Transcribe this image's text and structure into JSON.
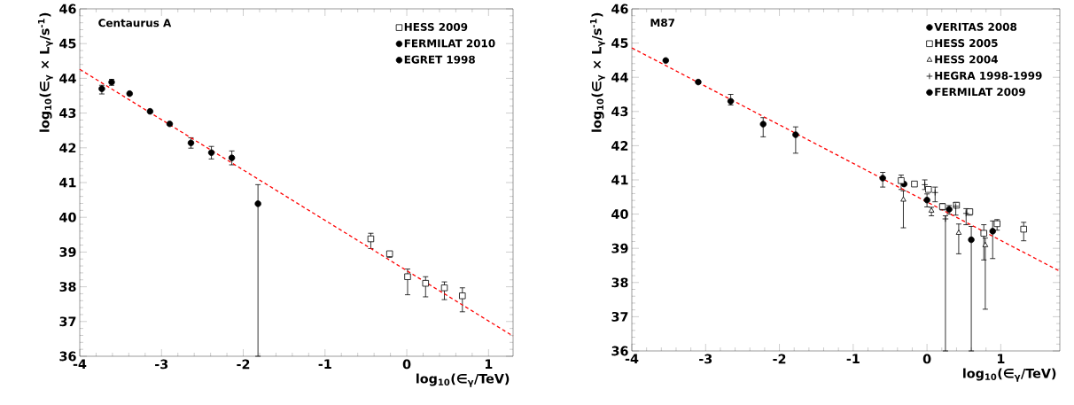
{
  "chart_data": [
    {
      "type": "scatter",
      "title": "Centaurus A",
      "xlabel": "log$_{10}$(∈$_{γ}$/TeV)",
      "ylabel": "log$_{10}$(∈$_{γ}$ × L$_{γ}$/s$^{-1}$)",
      "xlim": [
        -4,
        1.3
      ],
      "ylim": [
        36,
        46
      ],
      "xticks": [
        -4,
        -3,
        -2,
        -1,
        0,
        1
      ],
      "yticks": [
        36,
        37,
        38,
        39,
        40,
        41,
        42,
        43,
        44,
        45,
        46
      ],
      "legend": "top right",
      "series": [
        {
          "name": "HESS 2009",
          "color": "#000000",
          "marker": "square",
          "x": [
            -0.44,
            -0.21,
            0.01,
            0.23,
            0.46,
            0.68
          ],
          "values": [
            39.38,
            38.95,
            38.29,
            38.1,
            37.97,
            37.74
          ],
          "errors": [
            [
              39.1,
              39.54
            ],
            [
              38.85,
              39.0
            ],
            [
              37.77,
              38.51
            ],
            [
              37.71,
              38.29
            ],
            [
              37.63,
              38.14
            ],
            [
              37.28,
              37.97
            ]
          ]
        },
        {
          "name": "FERMILAT 2010",
          "color": "#000000",
          "marker": "circle",
          "x": [
            -3.61,
            -3.39,
            -3.14,
            -2.9,
            -2.64,
            -2.39,
            -2.14,
            -1.82
          ],
          "values": [
            43.89,
            43.56,
            43.05,
            42.69,
            42.14,
            41.86,
            41.71,
            40.39
          ],
          "errors": [
            [
              43.8,
              43.97
            ],
            null,
            null,
            null,
            [
              41.99,
              42.29
            ],
            [
              41.68,
              42.04
            ],
            [
              41.51,
              41.91
            ],
            [
              36,
              40.94
            ]
          ]
        },
        {
          "name": "EGRET 1998",
          "color": "#000000",
          "marker": "circle",
          "x": [
            -3.73
          ],
          "values": [
            43.7
          ],
          "errors": [
            [
              43.55,
              43.8
            ]
          ]
        },
        {
          "type": "line",
          "color": "#ff0000",
          "line_style": "dashed",
          "marker": "none",
          "x": [
            -4,
            1.3
          ],
          "values": [
            44.26,
            36.58
          ]
        }
      ]
    },
    {
      "type": "scatter",
      "title": "M87",
      "xlabel": "log$_{10}$(∈$_{γ}$/TeV)",
      "ylabel": "log$_{10}$(∈$_{γ}$ × L$_{γ}$/s$^{-1}$)",
      "xlim": [
        -4,
        1.8
      ],
      "ylim": [
        36,
        46
      ],
      "xticks": [
        -4,
        -3,
        -2,
        -1,
        0,
        1
      ],
      "yticks": [
        36,
        37,
        38,
        39,
        40,
        41,
        42,
        43,
        44,
        45,
        46
      ],
      "legend": "top right",
      "series": [
        {
          "name": "VERITAS 2008",
          "color": "#000000",
          "marker": "circle",
          "x": [
            -0.6,
            -0.31,
            0.0,
            0.3,
            0.6,
            0.89
          ],
          "values": [
            41.05,
            40.88,
            40.41,
            40.14,
            39.25,
            39.5
          ],
          "errors": [
            [
              40.79,
              41.22
            ],
            null,
            [
              40.21,
              40.59
            ],
            [
              40.0,
              40.25
            ],
            [
              36,
              39.64
            ],
            [
              38.7,
              39.8
            ]
          ]
        },
        {
          "name": "HESS 2005",
          "color": "#000000",
          "marker": "square",
          "x": [
            -0.35,
            -0.17,
            0.02,
            0.21,
            0.4,
            0.58,
            0.77,
            0.95,
            1.31
          ],
          "values": [
            40.98,
            40.88,
            40.72,
            40.22,
            40.26,
            40.07,
            39.44,
            39.72,
            39.56
          ],
          "errors": [
            [
              40.72,
              41.14
            ],
            null,
            null,
            [
              40.12,
              40.31
            ],
            null,
            [
              39.97,
              40.14
            ],
            [
              38.66,
              39.69
            ],
            [
              39.53,
              39.84
            ],
            [
              39.22,
              39.76
            ]
          ]
        },
        {
          "name": "HESS 2004",
          "color": "#000000",
          "marker": "triangle",
          "x": [
            -0.32,
            0.06,
            0.43,
            0.79
          ],
          "values": [
            40.42,
            40.1,
            39.45,
            39.09
          ],
          "errors": [
            [
              39.6,
              40.68
            ],
            [
              39.95,
              40.2
            ],
            [
              38.84,
              39.71
            ],
            [
              37.22,
              39.3
            ]
          ]
        },
        {
          "name": "HEGRA 1998-1999",
          "color": "#000000",
          "marker": "cross",
          "x": [
            -0.03,
            0.11,
            0.25,
            0.39,
            0.53
          ],
          "values": [
            40.86,
            40.63,
            39.86,
            40.23,
            40.02
          ],
          "errors": [
            [
              40.72,
              41.0
            ],
            [
              40.36,
              40.79
            ],
            [
              36,
              39.95
            ],
            [
              39.97,
              40.34
            ],
            [
              39.69,
              40.16
            ]
          ]
        },
        {
          "name": "FERMILAT 2009",
          "color": "#000000",
          "marker": "circle",
          "x": [
            -3.54,
            -3.1,
            -2.66,
            -2.22,
            -1.78
          ],
          "values": [
            44.49,
            43.86,
            43.3,
            42.63,
            42.32
          ],
          "errors": [
            null,
            null,
            [
              43.19,
              43.5
            ],
            [
              42.26,
              42.82
            ],
            [
              41.78,
              42.55
            ]
          ]
        },
        {
          "type": "line",
          "color": "#ff0000",
          "line_style": "dashed",
          "marker": "none",
          "x": [
            -4,
            1.8
          ],
          "values": [
            44.86,
            38.33
          ]
        }
      ]
    }
  ]
}
